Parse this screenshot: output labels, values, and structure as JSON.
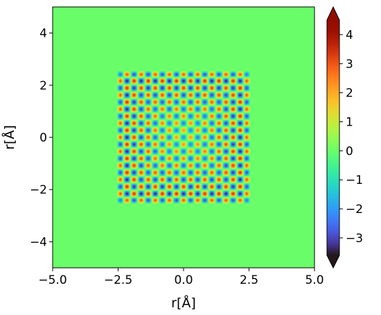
{
  "chart_data": {
    "type": "heatmap",
    "title": "",
    "xlabel": "r[Å]",
    "ylabel": "r[Å]",
    "xlim": [
      -5.0,
      5.0
    ],
    "ylim": [
      -5.0,
      5.0
    ],
    "x_ticks": [
      -5.0,
      -2.5,
      0.0,
      2.5,
      5.0
    ],
    "x_tick_labels": [
      "−5.0",
      "−2.5",
      "0.0",
      "2.5",
      "5.0"
    ],
    "y_ticks": [
      -4,
      -2,
      0,
      2,
      4
    ],
    "y_tick_labels": [
      "−4",
      "−2",
      "0",
      "2",
      "4"
    ],
    "background_value": 0,
    "pattern": {
      "support_half_width": 2.5,
      "grid_spacing": 0.27,
      "center_value_min": -3.6,
      "edge_value_max": 4.4,
      "description_type": "square lattice of alternating peaks"
    },
    "colorbar": {
      "colormap": "turbo",
      "vmin": -3.6,
      "vmax": 4.5,
      "ticks": [
        -3,
        -2,
        -1,
        0,
        1,
        2,
        3,
        4
      ],
      "tick_labels": [
        "−3",
        "−2",
        "−1",
        "0",
        "1",
        "2",
        "3",
        "4"
      ],
      "extend": "both"
    },
    "grid": false
  }
}
